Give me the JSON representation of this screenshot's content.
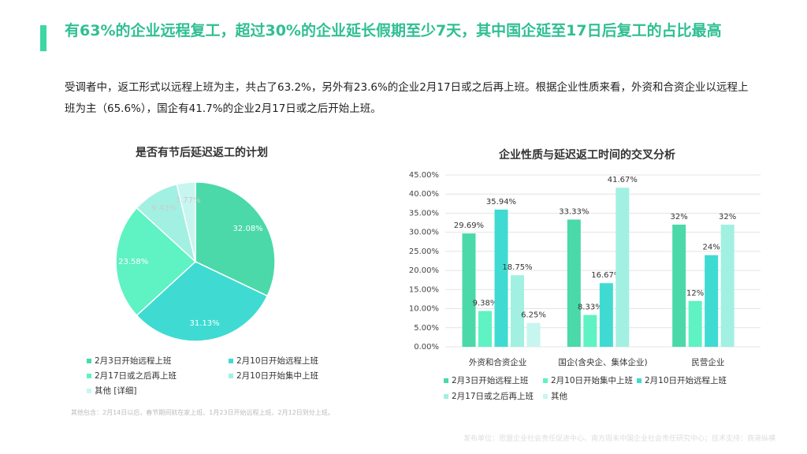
{
  "heading": "有63%的企业远程复工，超过30%的企业延长假期至少7天，其中国企延至17日后复工的占比最高",
  "intro": "受调者中，返工形式以远程上班为主，共占了63.2%，另外有23.6%的企业2月17日或之后再上班。根据企业性质来看，外资和合资企业以远程上班为主（65.6%），国企有41.7%的企业2月17日或之后开始上班。",
  "footnote": "其他包含：2月14日以后，春节期间就在家上班、1月23日开始远程上班、2月12日到分上班。",
  "source": "发布单位：思盟企业社会责任促进中心、南方周末中国企业社会责任研究中心；技术支持：商道纵横",
  "chart_data": [
    {
      "type": "pie",
      "title": "是否有节后延迟返工的计划",
      "categories": [
        "2月3日开始远程上班",
        "2月10日开始远程上班",
        "2月17日或之后再上班",
        "2月10日开始集中上班",
        "其他 [详细]"
      ],
      "values": [
        32.08,
        31.13,
        23.58,
        9.43,
        3.77
      ],
      "value_labels": [
        "32.08%",
        "31.13%",
        "23.58%",
        "9.43%",
        "3.77%"
      ],
      "colors": [
        "#4bd9a9",
        "#3fdbd2",
        "#5ff2c2",
        "#a2f0e2",
        "#c6f6ef"
      ]
    },
    {
      "type": "bar",
      "title": "企业性质与延迟返工时间的交叉分析",
      "categories": [
        "外资和合资企业",
        "国企(含央企、集体企业)",
        "民营企业"
      ],
      "series": [
        {
          "name": "2月3日开始远程上班",
          "color": "#4bd9a9",
          "values": [
            29.69,
            33.33,
            32
          ],
          "value_labels": [
            "29.69%",
            "33.33%",
            "32%"
          ]
        },
        {
          "name": "2月10日开始集中上班",
          "color": "#5ff2c2",
          "values": [
            9.38,
            8.33,
            12
          ],
          "value_labels": [
            "9.38%",
            "8.33%",
            "12%"
          ]
        },
        {
          "name": "2月10日开始远程上班",
          "color": "#3fdbd2",
          "values": [
            35.94,
            16.67,
            24
          ],
          "value_labels": [
            "35.94%",
            "16.67%",
            "24%"
          ]
        },
        {
          "name": "2月17日或之后再上班",
          "color": "#a2f0e2",
          "values": [
            18.75,
            41.67,
            32
          ],
          "value_labels": [
            "18.75%",
            "41.67%",
            "32%"
          ]
        },
        {
          "name": "其他",
          "color": "#c6f6ef",
          "values": [
            6.25,
            null,
            null
          ],
          "value_labels": [
            "6.25%",
            null,
            null
          ]
        }
      ],
      "ylim": [
        0,
        45
      ],
      "yticks": [
        {
          "value": 0,
          "label": "0.00%"
        },
        {
          "value": 5,
          "label": "5.00%"
        },
        {
          "value": 10,
          "label": "10.00%"
        },
        {
          "value": 15,
          "label": "15.00%"
        },
        {
          "value": 20,
          "label": "20.00%"
        },
        {
          "value": 25,
          "label": "25.00%"
        },
        {
          "value": 30,
          "label": "30.00%"
        },
        {
          "value": 35,
          "label": "35.00%"
        },
        {
          "value": 40,
          "label": "40.00%"
        },
        {
          "value": 45,
          "label": "45.00%"
        }
      ],
      "grid": true
    }
  ]
}
